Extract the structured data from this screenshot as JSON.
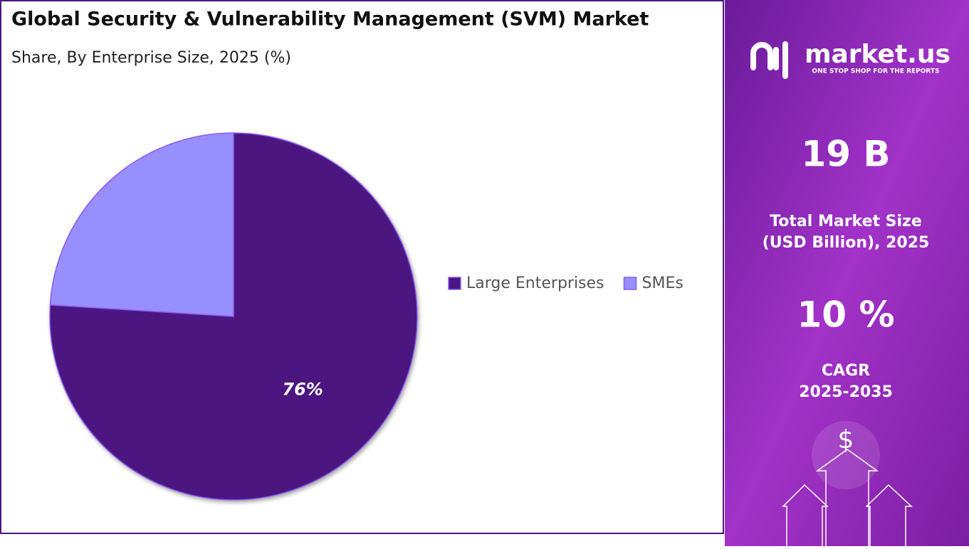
{
  "chart_data": {
    "type": "pie",
    "title": "Global Security & Vulnerability Management (SVM) Market",
    "subtitle": "Share, By Enterprise Size, 2025 (%)",
    "categories": [
      "Large Enterprises",
      "SMEs"
    ],
    "values": [
      76,
      24
    ],
    "value_labels": [
      "76%",
      null
    ],
    "colors": [
      "#4b1680",
      "#978ffd"
    ],
    "legend": "right"
  },
  "side_panel": {
    "brand": "market.us",
    "tagline": "ONE STOP SHOP FOR THE REPORTS",
    "market_size": "19 B",
    "market_size_label": [
      "Total Market Size",
      "(USD Billion), 2025"
    ],
    "cagr": "10 %",
    "cagr_label": [
      "CAGR",
      "2025-2035"
    ],
    "currency_icon": "$"
  }
}
